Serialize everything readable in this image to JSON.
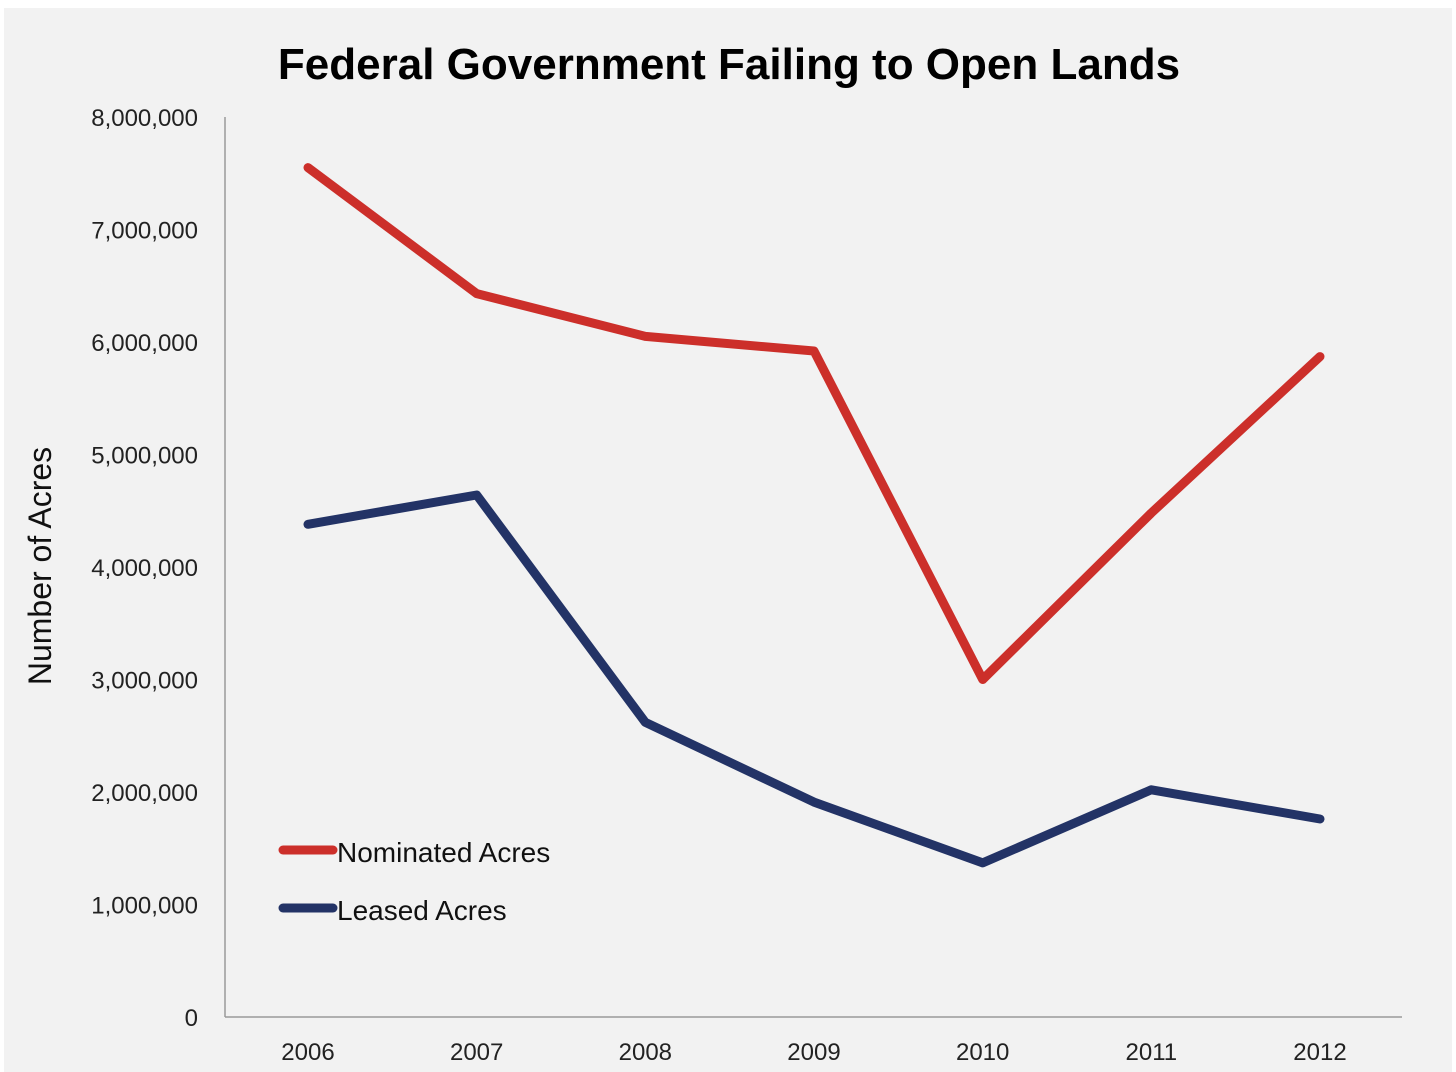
{
  "chart_data": {
    "type": "line",
    "title": "Federal Government Failing to Open Lands",
    "xlabel": "",
    "ylabel": "Number of Acres",
    "categories": [
      "2006",
      "2007",
      "2008",
      "2009",
      "2010",
      "2011",
      "2012"
    ],
    "y_ticks": [
      "0",
      "1,000,000",
      "2,000,000",
      "3,000,000",
      "4,000,000",
      "5,000,000",
      "6,000,000",
      "7,000,000",
      "8,000,000"
    ],
    "ylim": [
      0,
      8000000
    ],
    "grid": false,
    "legend_position": "bottom-left",
    "series": [
      {
        "name": "Nominated Acres",
        "color": "#cc2f2a",
        "values": [
          7550000,
          6430000,
          6050000,
          5920000,
          3000000,
          4480000,
          5870000
        ]
      },
      {
        "name": "Leased Acres",
        "color": "#233366",
        "values": [
          4380000,
          4640000,
          2620000,
          1910000,
          1370000,
          2020000,
          1760000
        ]
      }
    ]
  }
}
